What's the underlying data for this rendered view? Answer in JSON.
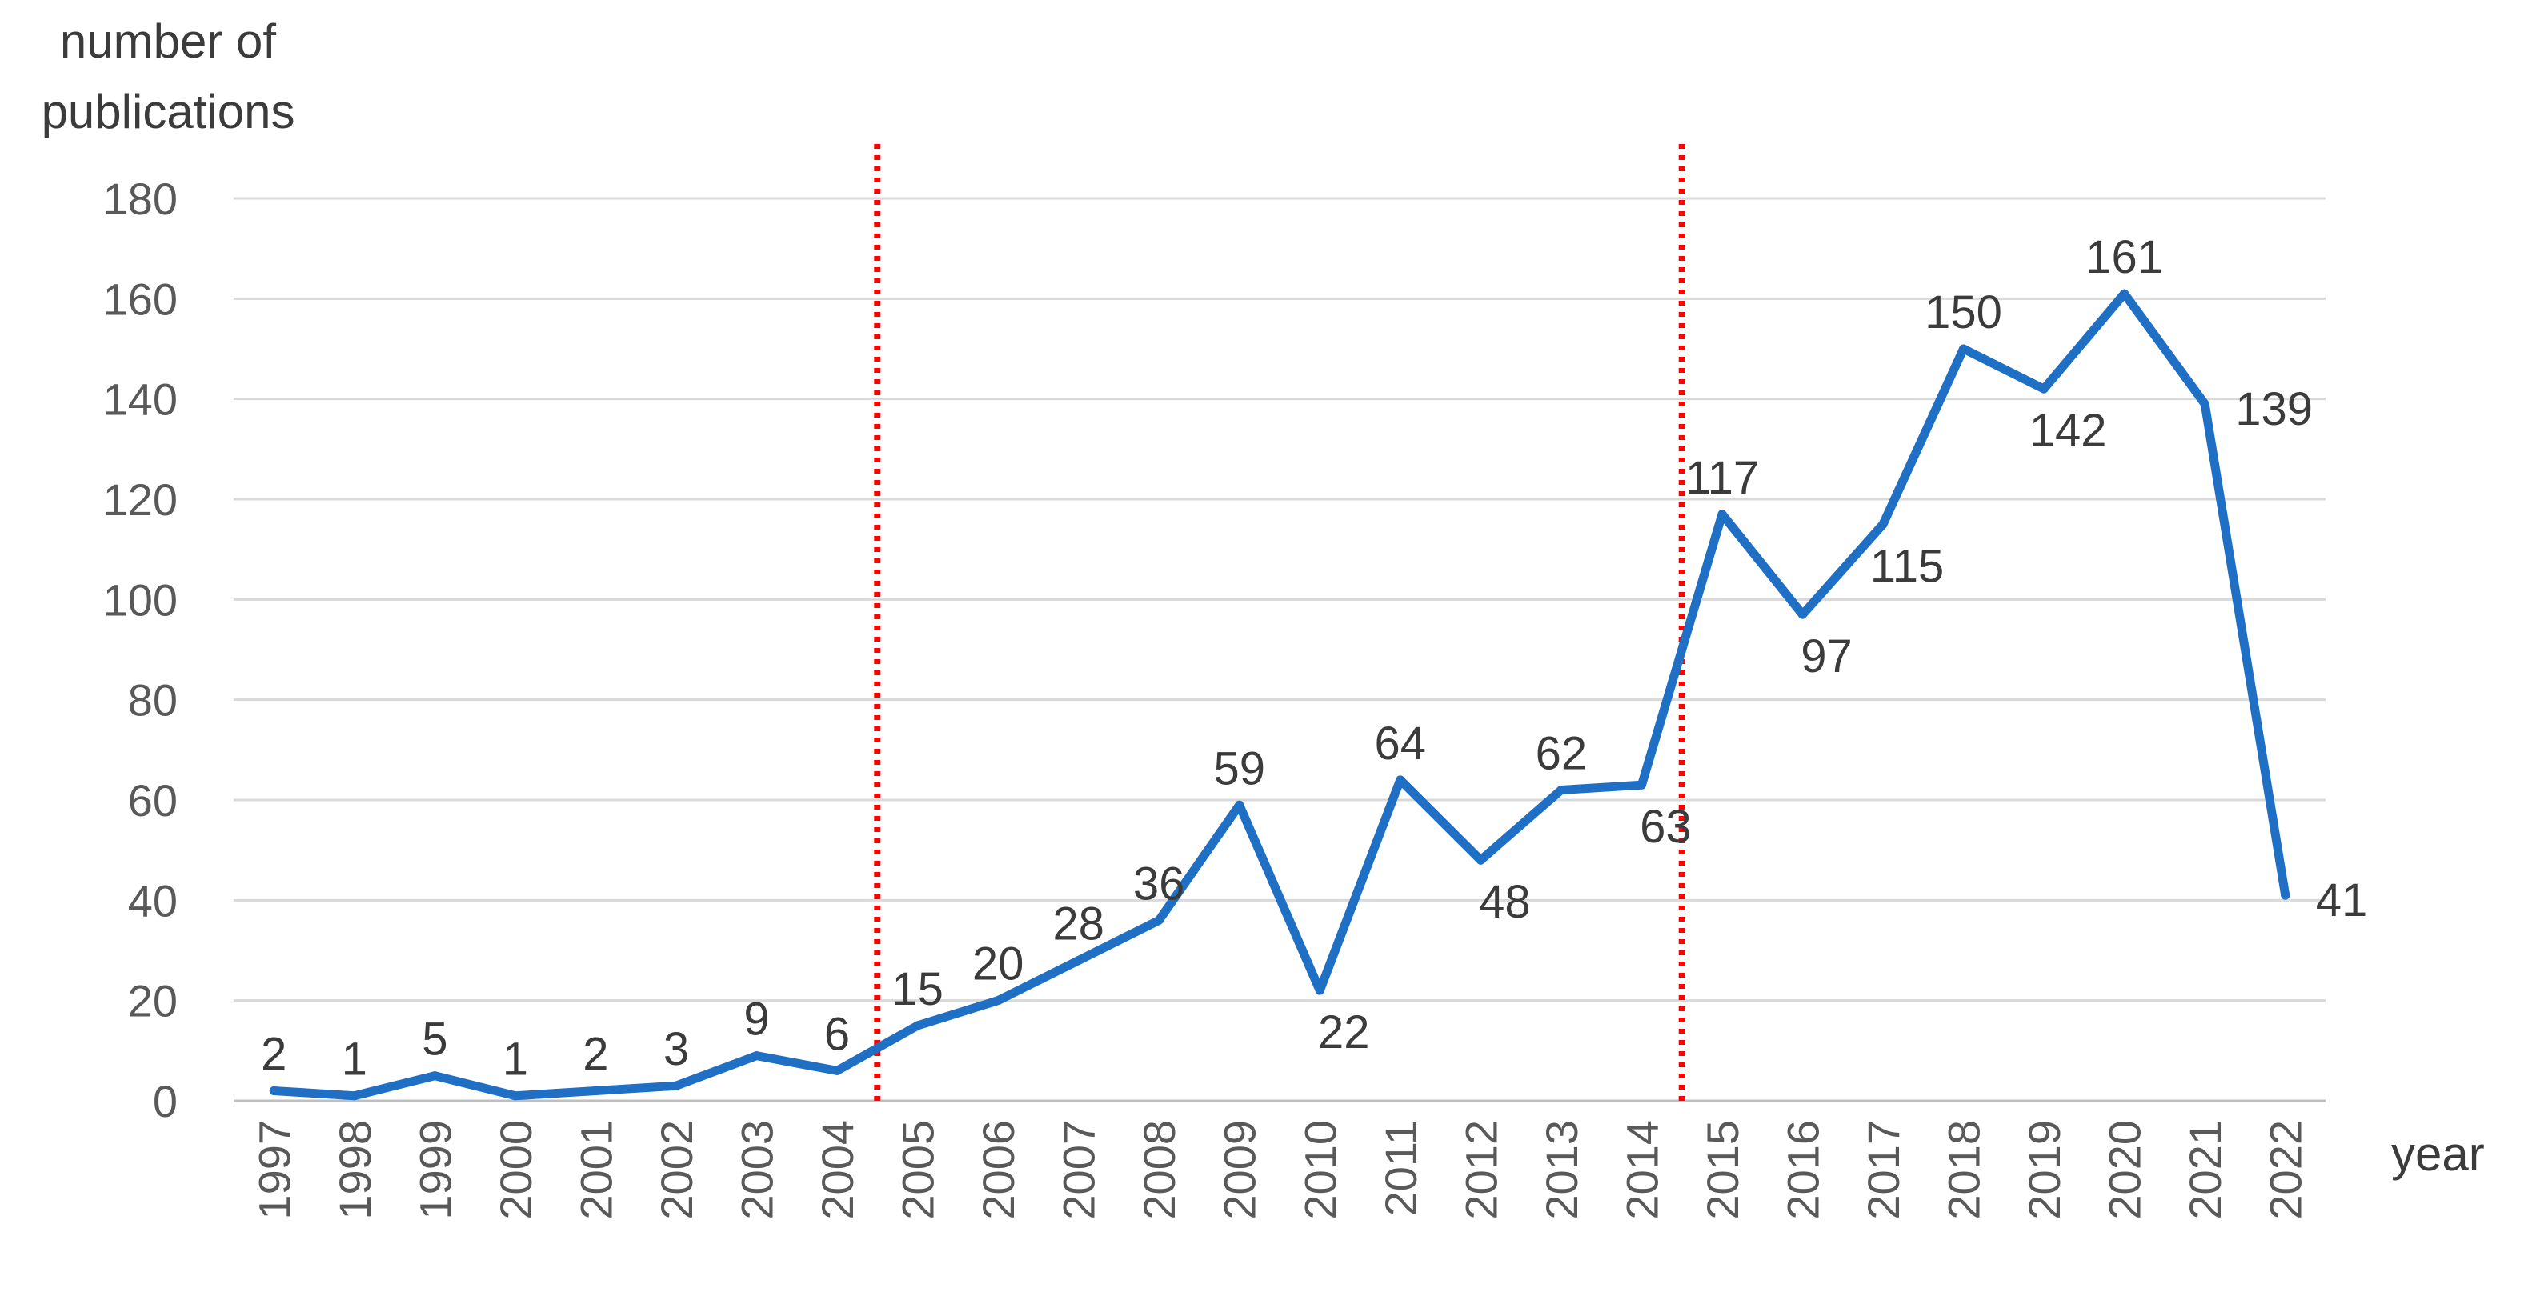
{
  "chart_data": {
    "type": "line",
    "title": "",
    "ylabel_lines": [
      "number of",
      "publications"
    ],
    "xlabel": "year",
    "ylim": [
      0,
      180
    ],
    "yticks": [
      0,
      20,
      40,
      60,
      80,
      100,
      120,
      140,
      160,
      180
    ],
    "grid": true,
    "categories": [
      "1997",
      "1998",
      "1999",
      "2000",
      "2001",
      "2002",
      "2003",
      "2004",
      "2005",
      "2006",
      "2007",
      "2008",
      "2009",
      "2010",
      "2011",
      "2012",
      "2013",
      "2014",
      "2015",
      "2016",
      "2017",
      "2018",
      "2019",
      "2020",
      "2021",
      "2022"
    ],
    "values": [
      2,
      1,
      5,
      1,
      2,
      3,
      9,
      6,
      15,
      20,
      28,
      36,
      59,
      22,
      64,
      48,
      62,
      63,
      117,
      97,
      115,
      150,
      142,
      161,
      139,
      41
    ],
    "label_positions": [
      "above",
      "above",
      "above",
      "above",
      "above",
      "above",
      "above",
      "above",
      "above",
      "above",
      "above",
      "above",
      "above",
      "below",
      "above",
      "below",
      "above",
      "below",
      "above",
      "below",
      "below",
      "above",
      "below",
      "above",
      "right",
      "right"
    ],
    "reference_lines": [
      {
        "between": [
          "2004",
          "2005"
        ],
        "style": "dotted",
        "color": "#ff0000"
      },
      {
        "between": [
          "2014",
          "2015"
        ],
        "style": "dotted",
        "color": "#ff0000"
      }
    ],
    "colors": {
      "line": "#1f6fc5",
      "grid": "#d9d9d9",
      "text": "#3b3b3b",
      "reference": "#ff0000"
    }
  }
}
